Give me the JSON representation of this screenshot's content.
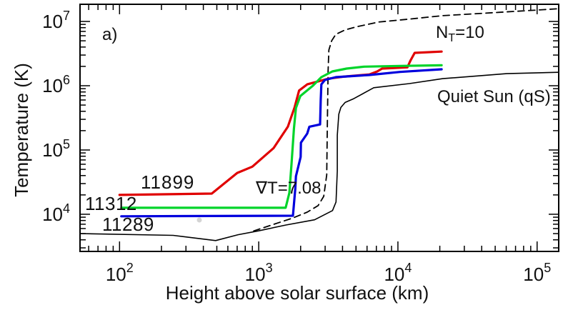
{
  "figure": {
    "panel_label": "a)",
    "annotations": {
      "nt": {
        "n": "N",
        "sub": "T",
        "rest": "=10"
      },
      "grad_t": "∇T=7.08"
    },
    "tick_base": "10",
    "colors": {
      "red": "#e00000",
      "green": "#00d42a",
      "blue": "#0000dd",
      "black": "#000000"
    }
  },
  "chart_data": {
    "type": "line",
    "title": "",
    "xlabel": "Height above solar surface (km)",
    "ylabel": "Temperature (K)",
    "x_scale": "log",
    "y_scale": "log",
    "xlim": [
      52,
      143000
    ],
    "ylim": [
      2640,
      18500000
    ],
    "x_tick_exponents": [
      2,
      3,
      4,
      5
    ],
    "y_tick_exponents": [
      4,
      5,
      6,
      7
    ],
    "grid": false,
    "legend_position": "inline-annotations",
    "series": [
      {
        "id": "nt10",
        "name": "N_T=10",
        "color": "#000000",
        "style": "dashed",
        "width": 1.8,
        "points": [
          [
            920,
            5500
          ],
          [
            1240,
            6800
          ],
          [
            1770,
            8800
          ],
          [
            2230,
            10800
          ],
          [
            2670,
            13600
          ],
          [
            2930,
            19000
          ],
          [
            3080,
            41000
          ],
          [
            3110,
            215000
          ],
          [
            3150,
            1670000
          ],
          [
            3190,
            3600000
          ],
          [
            3340,
            5000000
          ],
          [
            3580,
            6300000
          ],
          [
            4180,
            7400000
          ],
          [
            5100,
            8300000
          ],
          [
            7300,
            9800000
          ],
          [
            11700,
            10800000
          ],
          [
            21000,
            12300000
          ],
          [
            54100,
            13900000
          ],
          [
            143000,
            15800000
          ]
        ]
      },
      {
        "id": "quiet-sun",
        "name": "Quiet Sun (qS)",
        "color": "#000000",
        "style": "solid",
        "width": 1.6,
        "points": [
          [
            52,
            5000
          ],
          [
            243,
            4700
          ],
          [
            490,
            3900
          ],
          [
            710,
            4800
          ],
          [
            990,
            5500
          ],
          [
            1570,
            6800
          ],
          [
            2520,
            8200
          ],
          [
            3390,
            11400
          ],
          [
            3590,
            15500
          ],
          [
            3670,
            47000
          ],
          [
            3670,
            170000
          ],
          [
            3760,
            360000
          ],
          [
            3890,
            460000
          ],
          [
            4180,
            550000
          ],
          [
            4820,
            630000
          ],
          [
            6700,
            930000
          ],
          [
            12100,
            1080000
          ],
          [
            21000,
            1290000
          ],
          [
            60500,
            1540000
          ],
          [
            143000,
            1620000
          ]
        ]
      },
      {
        "id": "ar11899",
        "name": "11899",
        "color": "#e00000",
        "style": "solid",
        "width": 3.2,
        "points": [
          [
            100,
            20000
          ],
          [
            460,
            21000
          ],
          [
            700,
            44000
          ],
          [
            900,
            55000
          ],
          [
            1280,
            107000
          ],
          [
            1620,
            230000
          ],
          [
            1810,
            460000
          ],
          [
            1950,
            840000
          ],
          [
            2230,
            1050000
          ],
          [
            3180,
            1290000
          ],
          [
            4180,
            1390000
          ],
          [
            6240,
            1500000
          ],
          [
            7100,
            1670000
          ],
          [
            7700,
            1850000
          ],
          [
            11700,
            1930000
          ],
          [
            12300,
            2450000
          ],
          [
            13200,
            3250000
          ],
          [
            20600,
            3400000
          ]
        ]
      },
      {
        "id": "ar11312",
        "name": "11312",
        "color": "#00d42a",
        "style": "solid",
        "width": 3.2,
        "points": [
          [
            103,
            12600
          ],
          [
            1560,
            12600
          ],
          [
            1660,
            21500
          ],
          [
            1720,
            60000
          ],
          [
            1790,
            215000
          ],
          [
            1850,
            450000
          ],
          [
            1990,
            690000
          ],
          [
            2450,
            1000000
          ],
          [
            2820,
            1360000
          ],
          [
            3380,
            1670000
          ],
          [
            4280,
            1850000
          ],
          [
            5730,
            1980000
          ],
          [
            10350,
            2030000
          ],
          [
            20600,
            2080000
          ]
        ]
      },
      {
        "id": "ar11289",
        "name": "11289",
        "color": "#0000dd",
        "style": "solid",
        "width": 3.2,
        "points": [
          [
            103,
            9300
          ],
          [
            1760,
            9500
          ],
          [
            1830,
            25000
          ],
          [
            1850,
            39000
          ],
          [
            2000,
            78000
          ],
          [
            2010,
            130000
          ],
          [
            2230,
            180000
          ],
          [
            2310,
            230000
          ],
          [
            2760,
            250000
          ],
          [
            2790,
            600000
          ],
          [
            2820,
            1050000
          ],
          [
            2990,
            1230000
          ],
          [
            3580,
            1360000
          ],
          [
            6240,
            1470000
          ],
          [
            10350,
            1640000
          ],
          [
            20600,
            1800000
          ]
        ]
      }
    ]
  }
}
